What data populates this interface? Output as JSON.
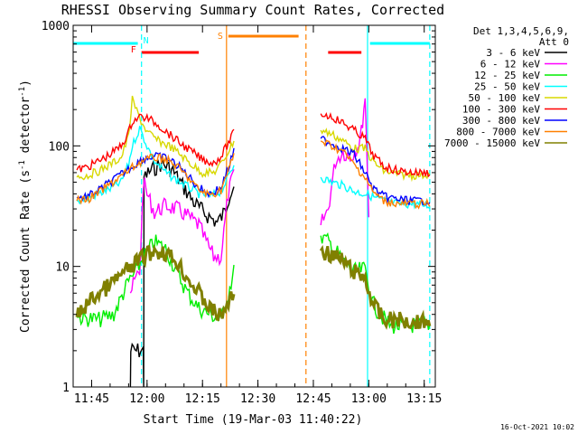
{
  "chart_data": {
    "type": "line",
    "title": "RHESSI Observing Summary Count Rates, Corrected",
    "xlabel": "Start Time (19-Mar-03 11:40:22)",
    "ylabel_main": "Corrected Count Rate (s",
    "ylabel_sup1": "-1",
    "ylabel_mid": " detector",
    "ylabel_sup2": "-1",
    "ylabel_end": ")",
    "timestamp": "16-Oct-2021 10:02",
    "y_scale": "log",
    "ylim": [
      1,
      1000
    ],
    "xlim": [
      "11:40",
      "13:18"
    ],
    "x_ticks": [
      "11:45",
      "12:00",
      "12:15",
      "12:30",
      "12:45",
      "13:00",
      "13:15"
    ],
    "y_ticks": [
      "1",
      "10",
      "100",
      "1000"
    ],
    "legend_header": [
      "Det 1,3,4,5,6,9,",
      "Att 0"
    ],
    "legend_position": "right",
    "series": [
      {
        "name": "3 - 6 keV",
        "color": "#000000"
      },
      {
        "name": "6 - 12 keV",
        "color": "#ff00ff"
      },
      {
        "name": "12 - 25 keV",
        "color": "#00ee00"
      },
      {
        "name": "25 - 50 keV",
        "color": "#00ffff"
      },
      {
        "name": "50 - 100 keV",
        "color": "#d8d800"
      },
      {
        "name": "100 - 300 keV",
        "color": "#ff0000"
      },
      {
        "name": "300 - 800 keV",
        "color": "#0000ff"
      },
      {
        "name": "800 - 7000 keV",
        "color": "#ff8000"
      },
      {
        "name": "7000 - 15000 keV",
        "color": "#808000"
      }
    ],
    "flags": [
      {
        "label": "N",
        "color": "#00ffff",
        "start": "11:40",
        "end": "11:57:30"
      },
      {
        "label": "",
        "color": "#00ffff",
        "start": "13:00:20",
        "end": "13:16:30"
      },
      {
        "label": "F",
        "color": "#ff0000",
        "start": "11:58:30",
        "end": "12:14"
      },
      {
        "label": "",
        "color": "#ff0000",
        "start": "12:49",
        "end": "12:58"
      },
      {
        "label": "S",
        "color": "#ff8000",
        "start": "12:22",
        "end": "12:41"
      }
    ],
    "markers": [
      {
        "time": "11:58:30",
        "color": "#00ffff",
        "style": "dashed"
      },
      {
        "time": "12:21:30",
        "color": "#ff8000",
        "style": "solid"
      },
      {
        "time": "12:43",
        "color": "#ff8000",
        "style": "dashed"
      },
      {
        "time": "12:59:40",
        "color": "#00ffff",
        "style": "solid"
      },
      {
        "time": "13:16:30",
        "color": "#00ffff",
        "style": "dashed"
      }
    ],
    "data": {
      "3 - 6 keV": [
        [
          "11:55:30",
          1
        ],
        [
          "11:55:35",
          2
        ],
        [
          "11:59",
          2
        ],
        [
          "11:59:05",
          1
        ],
        [
          "11:59:10",
          55
        ],
        [
          "12:01",
          62
        ],
        [
          "12:04",
          72
        ],
        [
          "12:07",
          62
        ],
        [
          "12:10",
          45
        ],
        [
          "12:13",
          33
        ],
        [
          "12:16",
          27
        ],
        [
          "12:19",
          23
        ],
        [
          "12:21",
          28
        ],
        [
          "12:22:30",
          42
        ],
        [
          "12:23:30",
          48
        ]
      ],
      "6 - 12 keV": [
        [
          "11:55:30",
          6
        ],
        [
          "11:57",
          8
        ],
        [
          "11:58",
          9
        ],
        [
          "11:59",
          50
        ],
        [
          "12:00",
          40
        ],
        [
          "12:02",
          28
        ],
        [
          "12:05",
          32
        ],
        [
          "12:08",
          30
        ],
        [
          "12:11",
          26
        ],
        [
          "12:14",
          22
        ],
        [
          "12:16",
          16
        ],
        [
          "12:18",
          12
        ],
        [
          "12:20",
          12
        ],
        [
          "12:22",
          40
        ],
        [
          "12:23:30",
          60
        ],
        [
          "12:47",
          22
        ],
        [
          "12:49",
          30
        ],
        [
          "12:51",
          75
        ],
        [
          "12:53",
          90
        ],
        [
          "12:55",
          80
        ],
        [
          "12:57",
          100
        ],
        [
          "12:58",
          130
        ],
        [
          "12:59",
          260
        ],
        [
          "13:00",
          28
        ]
      ],
      "12 - 25 keV": [
        [
          "11:41",
          3.8
        ],
        [
          "11:47",
          3.6
        ],
        [
          "11:49",
          3.8
        ],
        [
          "11:51",
          4
        ],
        [
          "11:55",
          7.5
        ],
        [
          "11:57",
          9
        ],
        [
          "11:59",
          12
        ],
        [
          "12:02",
          16
        ],
        [
          "12:05",
          14
        ],
        [
          "12:08",
          9
        ],
        [
          "12:11",
          6
        ],
        [
          "12:14",
          4.5
        ],
        [
          "12:17",
          4
        ],
        [
          "12:20",
          3.6
        ],
        [
          "12:22",
          6
        ],
        [
          "12:23:30",
          9
        ],
        [
          "12:47",
          18
        ],
        [
          "12:50",
          15
        ],
        [
          "12:53",
          11
        ],
        [
          "12:56",
          9
        ],
        [
          "12:59",
          9.5
        ],
        [
          "13:01",
          5
        ],
        [
          "13:03",
          4
        ],
        [
          "13:06",
          3.2
        ],
        [
          "13:10",
          3.2
        ],
        [
          "13:14",
          3.3
        ],
        [
          "13:16:30",
          3.3
        ]
      ],
      "25 - 50 keV": [
        [
          "11:41",
          35
        ],
        [
          "11:44",
          37
        ],
        [
          "11:47",
          40
        ],
        [
          "11:50",
          44
        ],
        [
          "11:53",
          50
        ],
        [
          "11:55",
          70
        ],
        [
          "11:56",
          100
        ],
        [
          "11:58",
          140
        ],
        [
          "12:00",
          100
        ],
        [
          "12:02",
          75
        ],
        [
          "12:05",
          60
        ],
        [
          "12:08",
          52
        ],
        [
          "12:11",
          46
        ],
        [
          "12:14",
          40
        ],
        [
          "12:17",
          38
        ],
        [
          "12:20",
          42
        ],
        [
          "12:22",
          55
        ],
        [
          "12:23:30",
          70
        ],
        [
          "12:47",
          55
        ],
        [
          "12:50",
          50
        ],
        [
          "12:53",
          47
        ],
        [
          "12:56",
          42
        ],
        [
          "12:59",
          40
        ],
        [
          "13:01",
          38
        ],
        [
          "13:04",
          35
        ],
        [
          "13:08",
          33
        ],
        [
          "13:12",
          33
        ],
        [
          "13:16:30",
          32
        ]
      ],
      "50 - 100 keV": [
        [
          "11:41",
          55
        ],
        [
          "11:44",
          57
        ],
        [
          "11:47",
          62
        ],
        [
          "11:50",
          70
        ],
        [
          "11:53",
          80
        ],
        [
          "11:55",
          120
        ],
        [
          "11:56",
          240
        ],
        [
          "11:58",
          170
        ],
        [
          "12:00",
          130
        ],
        [
          "12:03",
          110
        ],
        [
          "12:06",
          100
        ],
        [
          "12:09",
          85
        ],
        [
          "12:12",
          70
        ],
        [
          "12:15",
          60
        ],
        [
          "12:18",
          60
        ],
        [
          "12:20",
          70
        ],
        [
          "12:22",
          90
        ],
        [
          "12:23:30",
          110
        ],
        [
          "12:47",
          135
        ],
        [
          "12:50",
          125
        ],
        [
          "12:53",
          110
        ],
        [
          "12:56",
          95
        ],
        [
          "12:59",
          95
        ],
        [
          "13:01",
          75
        ],
        [
          "13:04",
          62
        ],
        [
          "13:08",
          58
        ],
        [
          "13:12",
          57
        ],
        [
          "13:16:30",
          58
        ]
      ],
      "100 - 300 keV": [
        [
          "11:41",
          63
        ],
        [
          "11:44",
          67
        ],
        [
          "11:47",
          75
        ],
        [
          "11:50",
          85
        ],
        [
          "11:53",
          100
        ],
        [
          "11:55",
          130
        ],
        [
          "11:56",
          160
        ],
        [
          "11:58",
          175
        ],
        [
          "12:00",
          170
        ],
        [
          "12:03",
          150
        ],
        [
          "12:06",
          125
        ],
        [
          "12:09",
          105
        ],
        [
          "12:12",
          90
        ],
        [
          "12:15",
          77
        ],
        [
          "12:18",
          72
        ],
        [
          "12:20",
          82
        ],
        [
          "12:22",
          105
        ],
        [
          "12:23:30",
          130
        ],
        [
          "12:47",
          185
        ],
        [
          "12:50",
          175
        ],
        [
          "12:53",
          155
        ],
        [
          "12:56",
          135
        ],
        [
          "12:59",
          115
        ],
        [
          "13:01",
          85
        ],
        [
          "13:04",
          68
        ],
        [
          "13:08",
          62
        ],
        [
          "13:12",
          60
        ],
        [
          "13:16:30",
          60
        ]
      ],
      "300 - 800 keV": [
        [
          "11:41",
          37
        ],
        [
          "11:44",
          38
        ],
        [
          "11:47",
          43
        ],
        [
          "11:50",
          50
        ],
        [
          "11:53",
          58
        ],
        [
          "11:56",
          68
        ],
        [
          "11:59",
          78
        ],
        [
          "12:02",
          82
        ],
        [
          "12:05",
          80
        ],
        [
          "12:08",
          70
        ],
        [
          "12:11",
          57
        ],
        [
          "12:14",
          45
        ],
        [
          "12:17",
          40
        ],
        [
          "12:20",
          45
        ],
        [
          "12:22",
          65
        ],
        [
          "12:23:30",
          90
        ],
        [
          "12:47",
          115
        ],
        [
          "12:50",
          105
        ],
        [
          "12:53",
          95
        ],
        [
          "12:56",
          85
        ],
        [
          "12:59",
          60
        ],
        [
          "13:01",
          45
        ],
        [
          "13:04",
          38
        ],
        [
          "13:08",
          36
        ],
        [
          "13:12",
          35
        ],
        [
          "13:16:30",
          35
        ]
      ],
      "800 - 7000 keV": [
        [
          "11:41",
          35
        ],
        [
          "11:44",
          36
        ],
        [
          "11:47",
          41
        ],
        [
          "11:50",
          48
        ],
        [
          "11:53",
          56
        ],
        [
          "11:56",
          66
        ],
        [
          "11:59",
          76
        ],
        [
          "12:02",
          80
        ],
        [
          "12:05",
          78
        ],
        [
          "12:08",
          68
        ],
        [
          "12:11",
          55
        ],
        [
          "12:14",
          43
        ],
        [
          "12:17",
          39
        ],
        [
          "12:20",
          43
        ],
        [
          "12:22",
          62
        ],
        [
          "12:23:30",
          85
        ],
        [
          "12:47",
          110
        ],
        [
          "12:50",
          100
        ],
        [
          "12:53",
          90
        ],
        [
          "12:56",
          70
        ],
        [
          "12:59",
          55
        ],
        [
          "13:01",
          42
        ],
        [
          "13:04",
          35
        ],
        [
          "13:08",
          33
        ],
        [
          "13:12",
          33
        ],
        [
          "13:16:30",
          33
        ]
      ],
      "7000 - 15000 keV": [
        [
          "11:41",
          3.8
        ],
        [
          "11:44",
          5
        ],
        [
          "11:47",
          6
        ],
        [
          "11:50",
          7
        ],
        [
          "11:53",
          8.5
        ],
        [
          "11:56",
          10
        ],
        [
          "11:59",
          12
        ],
        [
          "12:02",
          13.5
        ],
        [
          "12:05",
          13
        ],
        [
          "12:08",
          11
        ],
        [
          "12:11",
          8
        ],
        [
          "12:14",
          6
        ],
        [
          "12:17",
          4.5
        ],
        [
          "12:20",
          3.8
        ],
        [
          "12:22",
          5
        ],
        [
          "12:23:30",
          6
        ],
        [
          "12:47",
          13.5
        ],
        [
          "12:50",
          12.5
        ],
        [
          "12:53",
          11
        ],
        [
          "12:56",
          9
        ],
        [
          "12:59",
          8
        ],
        [
          "13:01",
          5
        ],
        [
          "13:04",
          3.6
        ],
        [
          "13:08",
          3.6
        ],
        [
          "13:12",
          3.5
        ],
        [
          "13:16:30",
          3.5
        ]
      ]
    }
  }
}
